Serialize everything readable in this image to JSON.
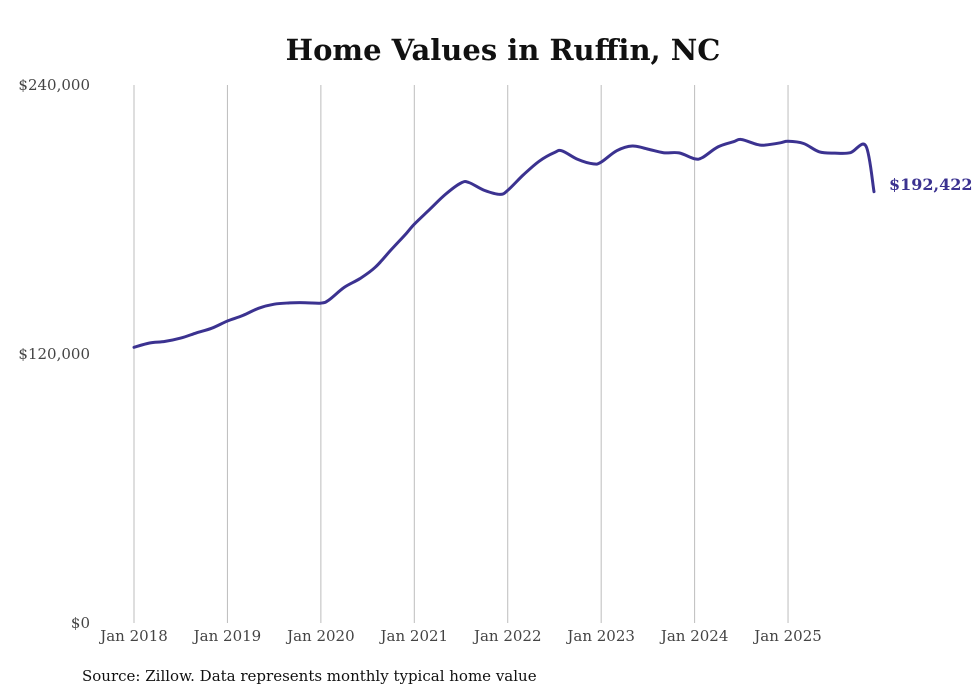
{
  "colors": {
    "line": "#3b3290",
    "grid": "#bdbdbd",
    "text": "#111111"
  },
  "chart_data": {
    "type": "line",
    "title": "Home Values in Ruffin, NC",
    "xlabel": "",
    "ylabel": "",
    "ylim": [
      0,
      240000
    ],
    "xlim": [
      2018.0,
      2025.92
    ],
    "y_ticks": [
      {
        "value": 0,
        "label": "$0"
      },
      {
        "value": 120000,
        "label": "$120,000"
      },
      {
        "value": 240000,
        "label": "$240,000"
      }
    ],
    "x_ticks": [
      {
        "value": 2018,
        "label": "Jan 2018"
      },
      {
        "value": 2019,
        "label": "Jan 2019"
      },
      {
        "value": 2020,
        "label": "Jan 2020"
      },
      {
        "value": 2021,
        "label": "Jan 2021"
      },
      {
        "value": 2022,
        "label": "Jan 2022"
      },
      {
        "value": 2023,
        "label": "Jan 2023"
      },
      {
        "value": 2024,
        "label": "Jan 2024"
      },
      {
        "value": 2025,
        "label": "Jan 2025"
      }
    ],
    "end_label": "$192,422",
    "series": [
      {
        "name": "Typical home value",
        "x": [
          2018.0,
          2018.167,
          2018.333,
          2018.5,
          2018.667,
          2018.833,
          2019.0,
          2019.167,
          2019.333,
          2019.5,
          2019.667,
          2019.833,
          2020.0,
          2020.083,
          2020.25,
          2020.417,
          2020.583,
          2020.75,
          2020.917,
          2021.0,
          2021.167,
          2021.333,
          2021.5,
          2021.583,
          2021.75,
          2021.917,
          2022.0,
          2022.167,
          2022.333,
          2022.5,
          2022.583,
          2022.75,
          2022.917,
          2023.0,
          2023.167,
          2023.333,
          2023.5,
          2023.667,
          2023.833,
          2024.0,
          2024.083,
          2024.25,
          2024.417,
          2024.5,
          2024.667,
          2024.75,
          2024.917,
          2025.0,
          2025.167,
          2025.333,
          2025.5,
          2025.667,
          2025.833,
          2025.92
        ],
        "values": [
          123000,
          124900,
          125600,
          127100,
          129400,
          131500,
          134700,
          137200,
          140400,
          142200,
          142800,
          142900,
          142700,
          144000,
          149700,
          153600,
          158700,
          166400,
          173900,
          177900,
          184600,
          191200,
          196300,
          196500,
          193000,
          191200,
          193000,
          199900,
          205900,
          209900,
          210600,
          206800,
          204800,
          205600,
          210700,
          212800,
          211400,
          209800,
          209700,
          207100,
          207600,
          212400,
          214700,
          215700,
          213500,
          213200,
          214200,
          214900,
          213900,
          210200,
          209600,
          209800,
          212800,
          192422
        ]
      }
    ]
  },
  "footer": {
    "source": "Source: Zillow. Data represents monthly typical home value"
  }
}
